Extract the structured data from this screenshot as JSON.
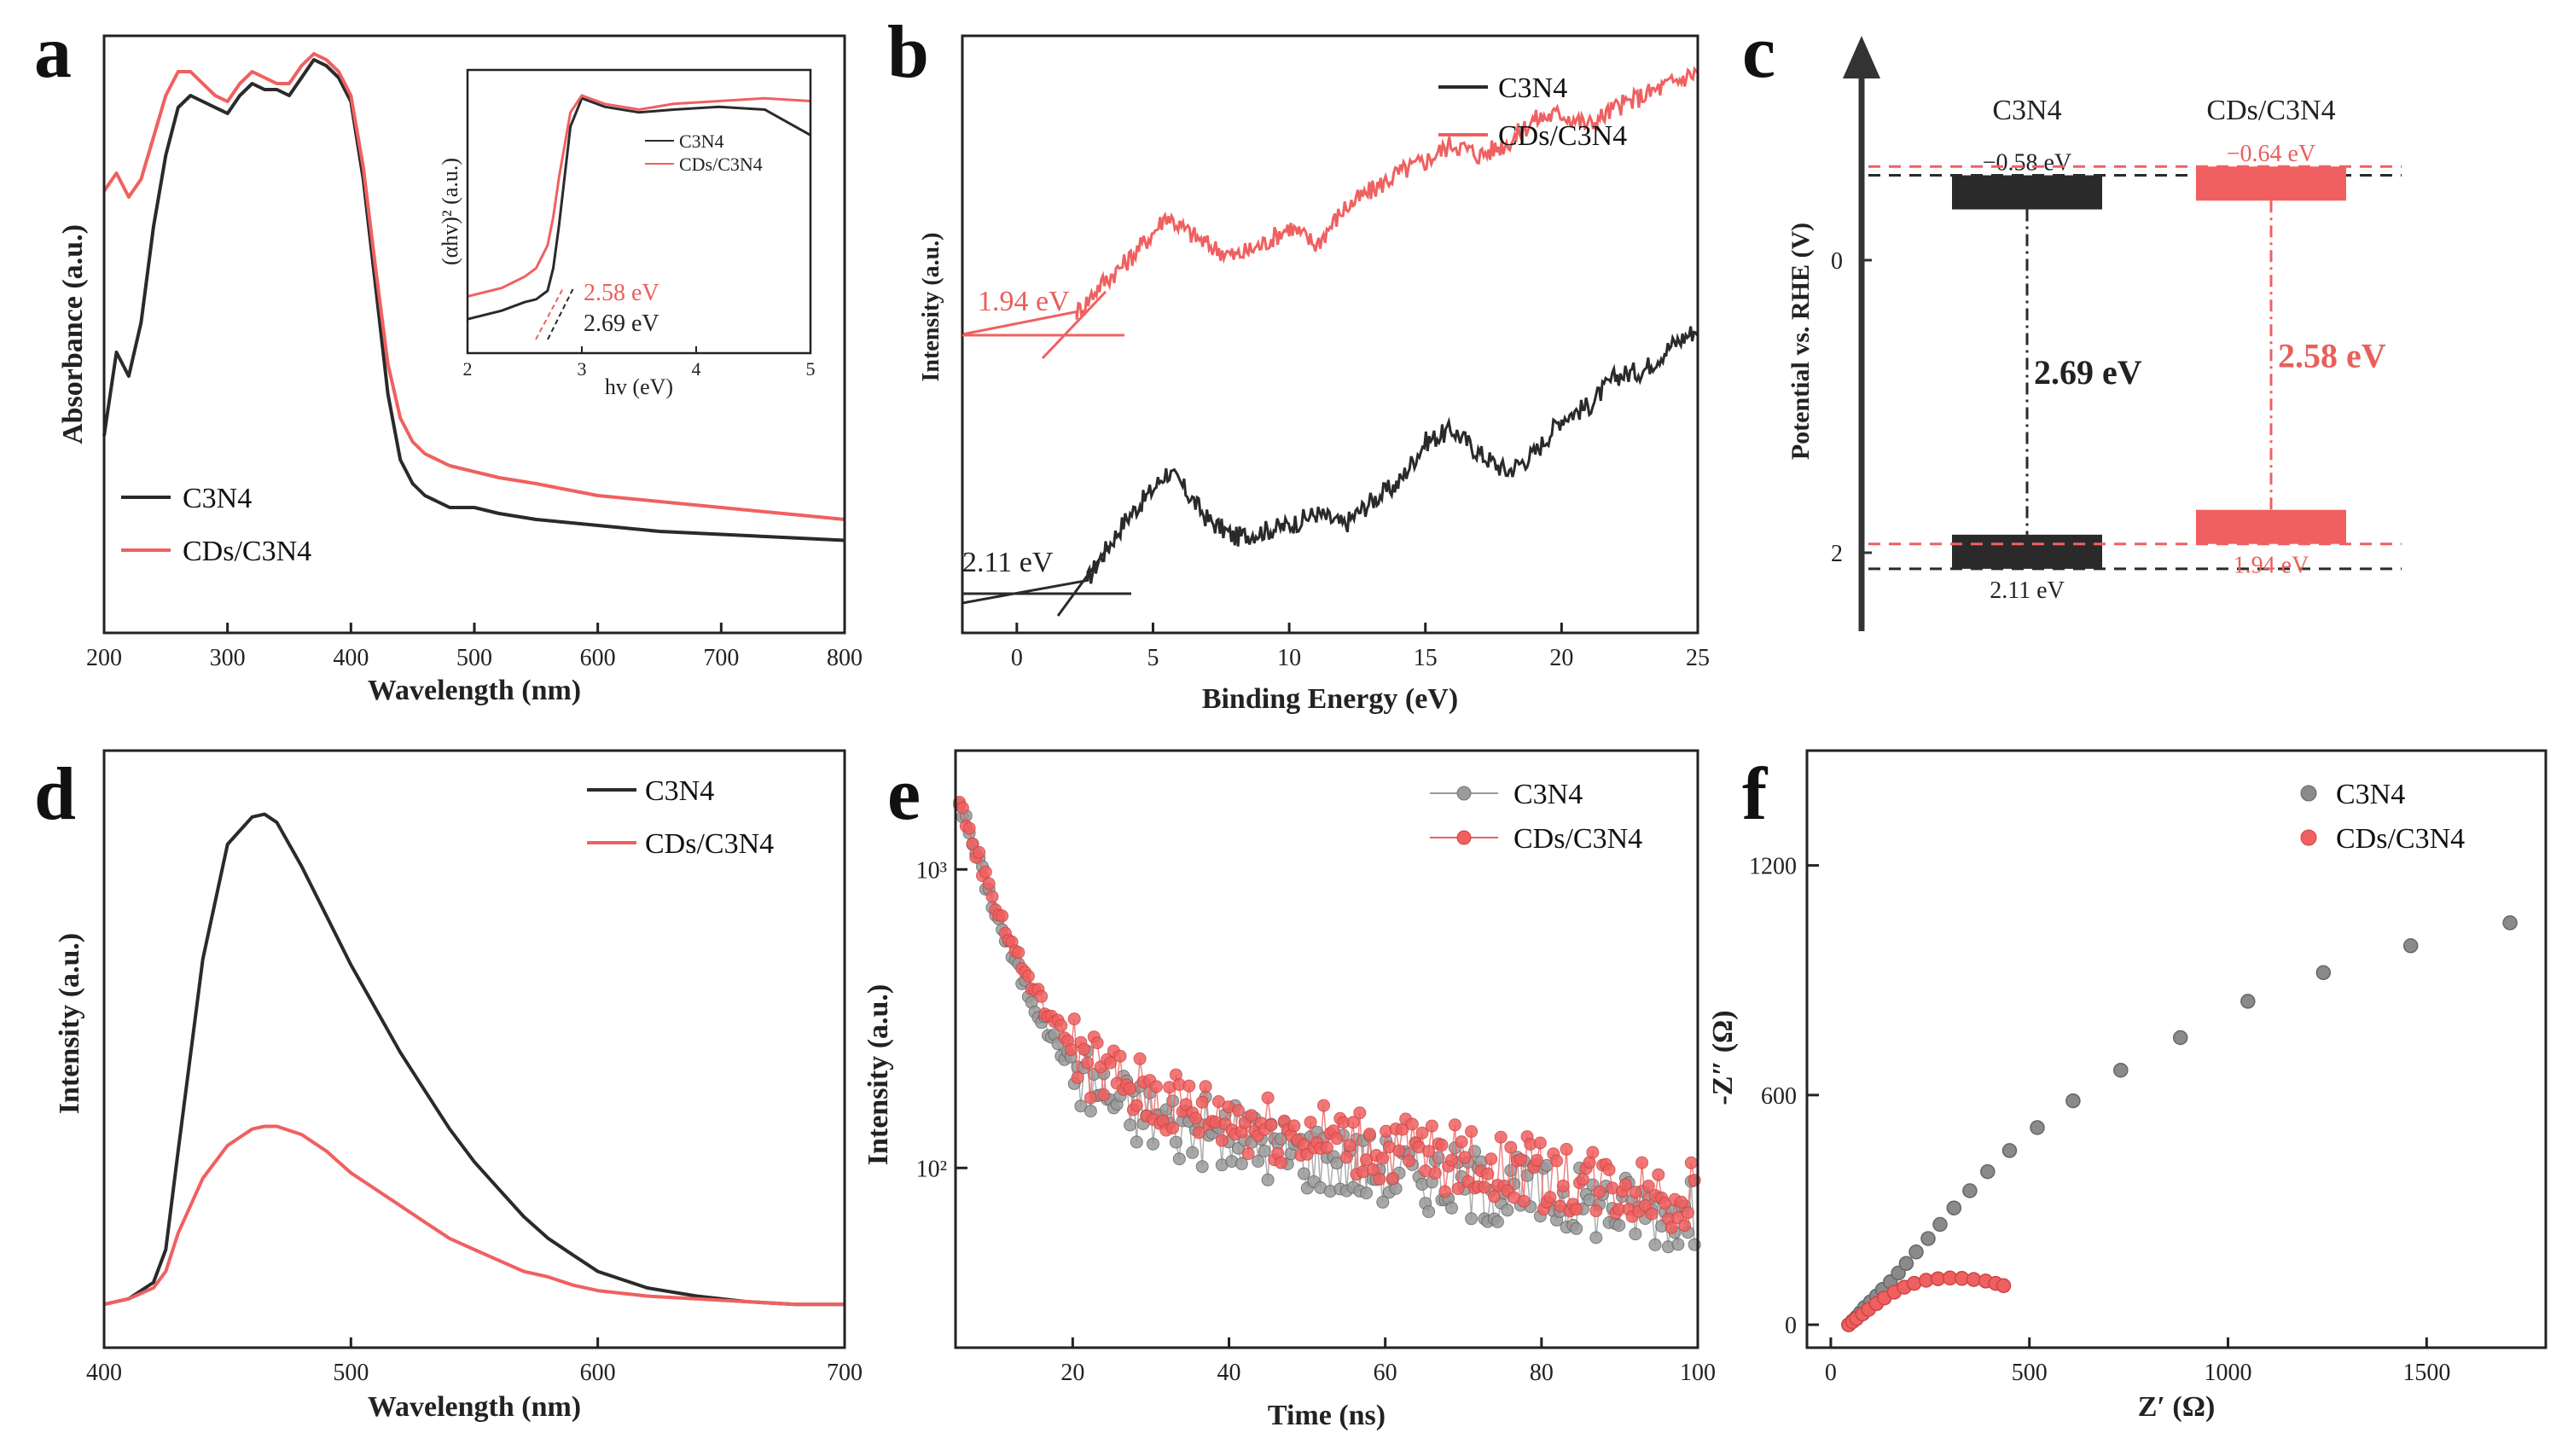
{
  "colors": {
    "black": "#2a2a2a",
    "red": "#f06060",
    "frame": "#222222",
    "redtext": "#e8605a"
  },
  "chart_data": [
    {
      "id": "a",
      "panel_label": "a",
      "type": "line",
      "xlabel": "Wavelength (nm)",
      "ylabel": "Absorbance (a.u.)",
      "xlim": [
        200,
        800
      ],
      "ylim": [
        0,
        1
      ],
      "xticks": [
        200,
        300,
        400,
        500,
        600,
        700,
        800
      ],
      "legend": "bottom-left",
      "series": [
        {
          "name": "C3N4",
          "color": "#2a2a2a",
          "x": [
            200,
            210,
            220,
            230,
            240,
            250,
            260,
            270,
            280,
            290,
            300,
            310,
            320,
            330,
            340,
            350,
            360,
            370,
            380,
            390,
            400,
            410,
            420,
            430,
            440,
            450,
            460,
            470,
            480,
            490,
            500,
            520,
            550,
            600,
            650,
            700,
            750,
            800
          ],
          "y": [
            0.33,
            0.47,
            0.43,
            0.52,
            0.68,
            0.8,
            0.88,
            0.9,
            0.89,
            0.88,
            0.87,
            0.9,
            0.92,
            0.91,
            0.91,
            0.9,
            0.93,
            0.96,
            0.95,
            0.93,
            0.89,
            0.76,
            0.58,
            0.4,
            0.29,
            0.25,
            0.23,
            0.22,
            0.21,
            0.21,
            0.21,
            0.2,
            0.19,
            0.18,
            0.17,
            0.165,
            0.16,
            0.155
          ]
        },
        {
          "name": "CDs/C3N4",
          "color": "#f06060",
          "x": [
            200,
            210,
            220,
            230,
            240,
            250,
            260,
            270,
            280,
            290,
            300,
            310,
            320,
            330,
            340,
            350,
            360,
            370,
            380,
            390,
            400,
            410,
            420,
            430,
            440,
            450,
            460,
            470,
            480,
            490,
            500,
            520,
            550,
            600,
            650,
            700,
            750,
            800
          ],
          "y": [
            0.74,
            0.77,
            0.73,
            0.76,
            0.83,
            0.9,
            0.94,
            0.94,
            0.92,
            0.9,
            0.89,
            0.92,
            0.94,
            0.93,
            0.92,
            0.92,
            0.95,
            0.97,
            0.96,
            0.94,
            0.9,
            0.78,
            0.61,
            0.45,
            0.36,
            0.32,
            0.3,
            0.29,
            0.28,
            0.275,
            0.27,
            0.26,
            0.25,
            0.23,
            0.22,
            0.21,
            0.2,
            0.19
          ]
        }
      ],
      "inset": {
        "xlabel": "hv (eV)",
        "ylabel": "(αhv)² (a.u.)",
        "xlim": [
          2,
          5
        ],
        "xticks": [
          2,
          3,
          4,
          5
        ],
        "legend": [
          "C3N4",
          "CDs/C3N4"
        ],
        "annotations": [
          {
            "text": "2.58 eV",
            "color": "red"
          },
          {
            "text": "2.69 eV",
            "color": "black"
          }
        ],
        "series": [
          {
            "name": "C3N4",
            "x": [
              2.0,
              2.3,
              2.5,
              2.6,
              2.7,
              2.75,
              2.8,
              2.9,
              3.0,
              3.2,
              3.5,
              3.8,
              4.2,
              4.6,
              5.0
            ],
            "y": [
              0.12,
              0.15,
              0.18,
              0.19,
              0.22,
              0.3,
              0.45,
              0.8,
              0.9,
              0.87,
              0.85,
              0.86,
              0.87,
              0.86,
              0.77
            ]
          },
          {
            "name": "CDs/C3N4",
            "x": [
              2.0,
              2.3,
              2.5,
              2.6,
              2.7,
              2.75,
              2.8,
              2.9,
              3.0,
              3.2,
              3.5,
              3.8,
              4.2,
              4.6,
              5.0
            ],
            "y": [
              0.2,
              0.23,
              0.27,
              0.3,
              0.38,
              0.48,
              0.62,
              0.85,
              0.91,
              0.88,
              0.86,
              0.88,
              0.89,
              0.9,
              0.89
            ]
          }
        ]
      }
    },
    {
      "id": "b",
      "panel_label": "b",
      "type": "line",
      "xlabel": "Binding Energy (eV)",
      "ylabel": "Intensity (a.u.)",
      "xlim": [
        -2,
        25
      ],
      "ylim": [
        0,
        1
      ],
      "xticks": [
        0,
        5,
        10,
        15,
        20,
        25
      ],
      "legend": "top-right",
      "annotations": [
        {
          "text": "1.94 eV",
          "color": "red"
        },
        {
          "text": "2.11 eV",
          "color": "black"
        }
      ],
      "series": [
        {
          "name": "C3N4",
          "color": "#2a2a2a",
          "x": [
            -2,
            0,
            1,
            2,
            2.5,
            3,
            4,
            5,
            5.5,
            6,
            7,
            8,
            9,
            10,
            11,
            12,
            13,
            14,
            15,
            16,
            17,
            18,
            19,
            20,
            21,
            22,
            23,
            24,
            25
          ],
          "y": [
            0.05,
            0.05,
            0.05,
            0.06,
            0.08,
            0.12,
            0.19,
            0.24,
            0.27,
            0.25,
            0.19,
            0.16,
            0.17,
            0.18,
            0.2,
            0.18,
            0.22,
            0.25,
            0.32,
            0.34,
            0.3,
            0.27,
            0.3,
            0.36,
            0.38,
            0.43,
            0.44,
            0.48,
            0.51
          ]
        },
        {
          "name": "CDs/C3N4",
          "color": "#f06060",
          "x": [
            -2,
            0,
            1,
            1.5,
            2,
            2.5,
            3,
            4,
            5,
            5.5,
            6,
            7,
            8,
            9,
            10,
            11,
            12,
            13,
            14,
            15,
            16,
            17,
            18,
            19,
            20,
            21,
            22,
            23,
            24,
            25
          ],
          "y": [
            0.5,
            0.5,
            0.5,
            0.51,
            0.53,
            0.55,
            0.58,
            0.62,
            0.67,
            0.7,
            0.68,
            0.65,
            0.63,
            0.65,
            0.68,
            0.65,
            0.71,
            0.74,
            0.77,
            0.79,
            0.82,
            0.8,
            0.82,
            0.86,
            0.87,
            0.85,
            0.88,
            0.9,
            0.92,
            0.94
          ]
        }
      ]
    },
    {
      "id": "c",
      "panel_label": "c",
      "type": "diagram",
      "ylabel": "Potential vs. RHE (V)",
      "ylim": [
        -1.3,
        2.5
      ],
      "yticks": [
        0,
        2
      ],
      "materials": [
        {
          "name": "C3N4",
          "cb": -0.58,
          "vb": 2.11,
          "gap_label": "2.69 eV",
          "cb_label": "−0.58 eV",
          "vb_label": "2.11 eV",
          "color": "#2a2a2a"
        },
        {
          "name": "CDs/C3N4",
          "cb": -0.64,
          "vb": 1.94,
          "gap_label": "2.58 eV",
          "cb_label": "−0.64 eV",
          "vb_label": "1.94 eV",
          "color": "#f06060"
        }
      ]
    },
    {
      "id": "d",
      "panel_label": "d",
      "type": "line",
      "xlabel": "Wavelength (nm)",
      "ylabel": "Intensity (a.u.)",
      "xlim": [
        400,
        700
      ],
      "ylim": [
        0,
        1
      ],
      "xticks": [
        400,
        500,
        600,
        700
      ],
      "legend": "top-right",
      "series": [
        {
          "name": "C3N4",
          "color": "#2a2a2a",
          "x": [
            400,
            410,
            420,
            425,
            430,
            440,
            450,
            460,
            465,
            470,
            480,
            490,
            500,
            510,
            520,
            530,
            540,
            550,
            560,
            570,
            580,
            590,
            600,
            620,
            640,
            660,
            680,
            700
          ],
          "y": [
            0.02,
            0.03,
            0.06,
            0.12,
            0.3,
            0.65,
            0.86,
            0.91,
            0.915,
            0.9,
            0.82,
            0.73,
            0.64,
            0.56,
            0.48,
            0.41,
            0.34,
            0.28,
            0.23,
            0.18,
            0.14,
            0.11,
            0.08,
            0.05,
            0.035,
            0.025,
            0.02,
            0.02
          ]
        },
        {
          "name": "CDs/C3N4",
          "color": "#f06060",
          "x": [
            400,
            410,
            420,
            425,
            430,
            440,
            450,
            460,
            465,
            470,
            480,
            490,
            500,
            510,
            520,
            530,
            540,
            550,
            560,
            570,
            580,
            590,
            600,
            620,
            640,
            660,
            680,
            700
          ],
          "y": [
            0.02,
            0.03,
            0.05,
            0.08,
            0.15,
            0.25,
            0.31,
            0.34,
            0.345,
            0.345,
            0.33,
            0.3,
            0.26,
            0.23,
            0.2,
            0.17,
            0.14,
            0.12,
            0.1,
            0.08,
            0.07,
            0.055,
            0.045,
            0.035,
            0.03,
            0.025,
            0.02,
            0.02
          ]
        }
      ]
    },
    {
      "id": "e",
      "panel_label": "e",
      "type": "scatter",
      "xlabel": "Time (ns)",
      "ylabel": "Intensity (a.u.)",
      "yscale": "log",
      "xlim": [
        5,
        100
      ],
      "ylim": [
        25,
        2500
      ],
      "xticks": [
        20,
        40,
        60,
        80,
        100
      ],
      "yticks_labels": [
        "10³",
        "10²"
      ],
      "yticks_values": [
        1000,
        100
      ],
      "legend": "top-right",
      "series": [
        {
          "name": "C3N4",
          "color": "#9a9a9a",
          "decay": {
            "a1": 1500,
            "tau1": 4.5,
            "a2": 160,
            "tau2": 55,
            "base": 40
          }
        },
        {
          "name": "CDs/C3N4",
          "color": "#f06060",
          "decay": {
            "a1": 1450,
            "tau1": 4.8,
            "a2": 185,
            "tau2": 60,
            "base": 42
          }
        }
      ]
    },
    {
      "id": "f",
      "panel_label": "f",
      "type": "scatter",
      "xlabel": "Z′ (Ω)",
      "ylabel": "-Z″ (Ω)",
      "xlim": [
        -60,
        1800
      ],
      "ylim": [
        -60,
        1500
      ],
      "xticks": [
        0,
        500,
        1000,
        1500
      ],
      "yticks": [
        0,
        600,
        1200
      ],
      "legend": "top-right",
      "series": [
        {
          "name": "C3N4",
          "color": "#8a8a8a",
          "x": [
            45,
            55,
            65,
            75,
            85,
            100,
            115,
            130,
            150,
            170,
            190,
            215,
            245,
            275,
            310,
            350,
            395,
            450,
            520,
            610,
            730,
            880,
            1050,
            1240,
            1460,
            1710
          ],
          "y": [
            0,
            10,
            20,
            32,
            45,
            60,
            75,
            92,
            112,
            135,
            160,
            190,
            225,
            262,
            305,
            350,
            400,
            455,
            515,
            585,
            665,
            750,
            845,
            920,
            990,
            1050
          ]
        },
        {
          "name": "CDs/C3N4",
          "color": "#f06060",
          "x": [
            45,
            55,
            65,
            80,
            95,
            115,
            135,
            160,
            185,
            210,
            240,
            270,
            300,
            330,
            360,
            390,
            415,
            435
          ],
          "y": [
            0,
            8,
            16,
            28,
            40,
            55,
            70,
            85,
            98,
            108,
            116,
            120,
            122,
            121,
            118,
            114,
            108,
            102
          ]
        }
      ]
    }
  ]
}
